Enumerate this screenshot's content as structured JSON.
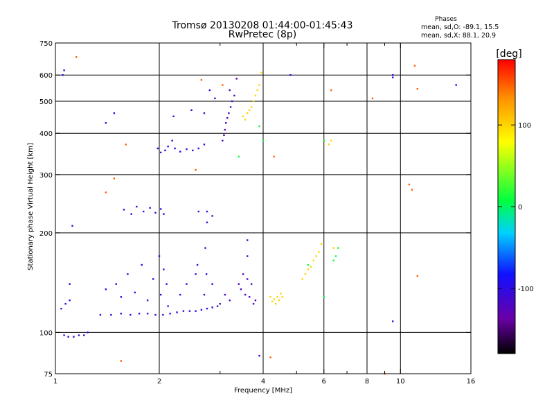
{
  "chart_data": {
    "type": "scatter",
    "title": "Tromsø 20130208 01:44:00-01:45:43",
    "subtitle": "RwPretec (8p)",
    "xlabel": "Frequency [MHz]",
    "ylabel": "Stationary phase Virtual Height [km]",
    "x_scale": "log",
    "y_scale": "log",
    "xlim": [
      1,
      16
    ],
    "ylim": [
      75,
      750
    ],
    "x_ticks": [
      1,
      2,
      4,
      6,
      8,
      10,
      16
    ],
    "x_grid": [
      2,
      4,
      6,
      8,
      10
    ],
    "x_minor": [
      3,
      5,
      7,
      9
    ],
    "y_ticks": [
      75,
      100,
      200,
      300,
      400,
      500,
      600,
      750
    ],
    "y_grid": [
      100,
      200,
      300,
      400,
      500,
      600
    ],
    "grid": true,
    "colorbar": {
      "label": "[deg]",
      "range": [
        -180,
        180
      ],
      "ticks": [
        100,
        0,
        -100
      ]
    },
    "stats": {
      "heading": "Phases",
      "line_o": "mean, sd,O: -89.1, 15.5",
      "line_x": "mean, sd,X: 88.1, 20.9"
    },
    "series": [
      {
        "color_phase": -100,
        "points": [
          [
            1.06,
            98
          ],
          [
            1.09,
            97
          ],
          [
            1.13,
            97
          ],
          [
            1.17,
            98
          ],
          [
            1.21,
            98
          ],
          [
            1.24,
            100
          ],
          [
            1.04,
            118
          ],
          [
            1.07,
            122
          ],
          [
            1.1,
            125
          ],
          [
            1.35,
            113
          ],
          [
            1.45,
            113
          ],
          [
            1.55,
            114
          ],
          [
            1.65,
            113
          ],
          [
            1.75,
            114
          ],
          [
            1.85,
            114
          ],
          [
            1.95,
            113
          ],
          [
            2.05,
            113
          ],
          [
            2.15,
            114
          ],
          [
            2.25,
            115
          ],
          [
            2.35,
            116
          ],
          [
            2.45,
            116
          ],
          [
            2.55,
            116
          ],
          [
            2.65,
            117
          ],
          [
            2.75,
            118
          ],
          [
            2.85,
            119
          ],
          [
            2.95,
            120
          ],
          [
            1.4,
            135
          ],
          [
            1.5,
            140
          ],
          [
            1.55,
            128
          ],
          [
            1.62,
            150
          ],
          [
            1.7,
            132
          ],
          [
            1.78,
            160
          ],
          [
            1.85,
            125
          ],
          [
            1.92,
            145
          ],
          [
            2.0,
            170
          ],
          [
            2.02,
            130
          ],
          [
            2.06,
            155
          ],
          [
            2.1,
            140
          ],
          [
            2.12,
            120
          ],
          [
            2.3,
            130
          ],
          [
            2.4,
            140
          ],
          [
            2.55,
            150
          ],
          [
            2.58,
            160
          ],
          [
            2.7,
            130
          ],
          [
            2.72,
            180
          ],
          [
            2.74,
            150
          ],
          [
            2.85,
            140
          ],
          [
            1.58,
            235
          ],
          [
            1.66,
            228
          ],
          [
            1.72,
            240
          ],
          [
            1.8,
            232
          ],
          [
            1.88,
            238
          ],
          [
            1.95,
            230
          ],
          [
            2.02,
            236
          ],
          [
            2.06,
            228
          ],
          [
            2.6,
            232
          ],
          [
            2.75,
            232
          ],
          [
            2.75,
            215
          ],
          [
            2.85,
            225
          ],
          [
            1.98,
            360
          ],
          [
            2.02,
            350
          ],
          [
            2.08,
            355
          ],
          [
            2.12,
            365
          ],
          [
            2.18,
            380
          ],
          [
            2.22,
            360
          ],
          [
            2.3,
            352
          ],
          [
            2.4,
            358
          ],
          [
            2.5,
            355
          ],
          [
            2.6,
            360
          ],
          [
            2.7,
            370
          ],
          [
            2.48,
            470
          ],
          [
            2.7,
            460
          ],
          [
            2.8,
            540
          ],
          [
            2.9,
            510
          ],
          [
            2.2,
            450
          ],
          [
            1.48,
            460
          ],
          [
            1.4,
            430
          ],
          [
            1.12,
            210
          ],
          [
            1.1,
            140
          ],
          [
            1.05,
            600
          ],
          [
            1.06,
            620
          ],
          [
            9.5,
            600
          ],
          [
            9.5,
            590
          ],
          [
            14.5,
            560
          ],
          [
            9.5,
            108
          ],
          [
            4.8,
            600
          ],
          [
            3.9,
            85
          ]
        ]
      },
      {
        "color_phase": -120,
        "points": [
          [
            3.4,
            140
          ],
          [
            3.45,
            135
          ],
          [
            3.5,
            150
          ],
          [
            3.55,
            130
          ],
          [
            3.6,
            145
          ],
          [
            3.6,
            170
          ],
          [
            3.6,
            190
          ],
          [
            3.65,
            128
          ],
          [
            3.7,
            140
          ],
          [
            3.75,
            122
          ],
          [
            3.8,
            125
          ],
          [
            3.05,
            380
          ],
          [
            3.08,
            395
          ],
          [
            3.1,
            410
          ],
          [
            3.12,
            430
          ],
          [
            3.15,
            445
          ],
          [
            3.18,
            460
          ],
          [
            3.22,
            480
          ],
          [
            3.25,
            500
          ],
          [
            3.3,
            520
          ],
          [
            3.35,
            585
          ],
          [
            3.2,
            540
          ],
          [
            3.0,
            122
          ],
          [
            3.1,
            130
          ],
          [
            3.2,
            125
          ]
        ]
      },
      {
        "color_phase": 100,
        "points": [
          [
            4.2,
            128
          ],
          [
            4.25,
            124
          ],
          [
            4.3,
            126
          ],
          [
            4.35,
            122
          ],
          [
            4.4,
            128
          ],
          [
            4.45,
            125
          ],
          [
            4.5,
            131
          ],
          [
            4.55,
            128
          ],
          [
            5.2,
            145
          ],
          [
            5.3,
            150
          ],
          [
            5.4,
            155
          ],
          [
            5.5,
            158
          ],
          [
            5.6,
            165
          ],
          [
            5.7,
            170
          ],
          [
            5.8,
            175
          ],
          [
            5.9,
            185
          ],
          [
            3.5,
            450
          ],
          [
            3.55,
            440
          ],
          [
            3.6,
            460
          ],
          [
            3.65,
            470
          ],
          [
            3.7,
            480
          ],
          [
            3.75,
            500
          ],
          [
            3.8,
            520
          ],
          [
            3.85,
            540
          ],
          [
            3.9,
            560
          ],
          [
            3.95,
            610
          ],
          [
            6.2,
            370
          ],
          [
            6.3,
            380
          ],
          [
            6.4,
            180
          ]
        ]
      },
      {
        "color_phase": 150,
        "points": [
          [
            1.15,
            680
          ],
          [
            1.48,
            292
          ],
          [
            1.6,
            370
          ],
          [
            1.4,
            265
          ],
          [
            2.55,
            310
          ],
          [
            2.65,
            580
          ],
          [
            3.05,
            560
          ],
          [
            4.3,
            340
          ],
          [
            4.2,
            84
          ],
          [
            6.3,
            540
          ],
          [
            8.3,
            510
          ],
          [
            11.0,
            640
          ],
          [
            11.2,
            545
          ],
          [
            11.2,
            148
          ],
          [
            10.8,
            270
          ],
          [
            10.6,
            280
          ],
          [
            1.55,
            82
          ],
          [
            9.0,
            75
          ]
        ]
      },
      {
        "color_phase": 10,
        "points": [
          [
            3.9,
            420
          ],
          [
            4.0,
            380
          ],
          [
            6.0,
            380
          ],
          [
            6.4,
            165
          ],
          [
            6.5,
            170
          ],
          [
            6.6,
            180
          ],
          [
            6.0,
            128
          ],
          [
            3.4,
            340
          ],
          [
            5.4,
            160
          ]
        ]
      }
    ]
  }
}
